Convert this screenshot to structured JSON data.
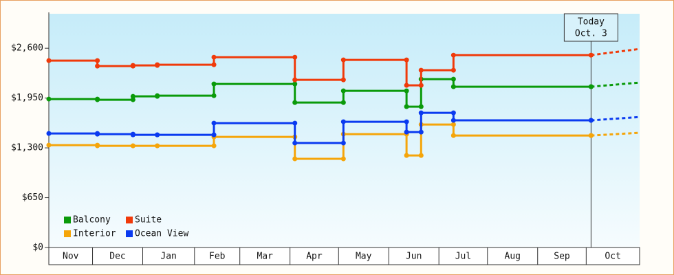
{
  "chart_data": {
    "type": "step-line",
    "x": [
      0,
      30,
      52,
      67,
      102,
      152,
      182,
      221,
      230,
      250,
      335
    ],
    "xlim": [
      0,
      365
    ],
    "month_edges": [
      0,
      27,
      58,
      90,
      118,
      149,
      179,
      210,
      241,
      271,
      302,
      332,
      365
    ],
    "months": [
      "Nov",
      "Dec",
      "Jan",
      "Feb",
      "Mar",
      "Apr",
      "May",
      "Jun",
      "Jul",
      "Aug",
      "Sep",
      "Oct"
    ],
    "ylim": [
      0,
      3050
    ],
    "yticks": [
      {
        "value": 0,
        "label": "$0"
      },
      {
        "value": 650,
        "label": "$650"
      },
      {
        "value": 1300,
        "label": "$1,300"
      },
      {
        "value": 1950,
        "label": "$1,950"
      },
      {
        "value": 2600,
        "label": "$2,600"
      }
    ],
    "today": {
      "x": 335,
      "lines": [
        "Today",
        "Oct. 3"
      ]
    },
    "forecast_x": 365,
    "series": [
      {
        "name": "Balcony",
        "color": "#0a9a0a",
        "values": [
          1937,
          1928,
          1972,
          1981,
          2134,
          1892,
          2044,
          1838,
          2197,
          2098,
          2098
        ],
        "forecast": 2152
      },
      {
        "name": "Suite",
        "color": "#f03a0a",
        "values": [
          2439,
          2367,
          2376,
          2385,
          2483,
          2188,
          2448,
          2116,
          2313,
          2510,
          2510
        ],
        "forecast": 2591
      },
      {
        "name": "Interior",
        "color": "#f5a50a",
        "values": [
          1336,
          1327,
          1327,
          1327,
          1443,
          1157,
          1479,
          1201,
          1605,
          1461,
          1461
        ],
        "forecast": 1497
      },
      {
        "name": "Ocean View",
        "color": "#0a3af0",
        "values": [
          1488,
          1479,
          1470,
          1470,
          1623,
          1363,
          1641,
          1506,
          1757,
          1659,
          1659
        ],
        "forecast": 1703
      }
    ]
  }
}
